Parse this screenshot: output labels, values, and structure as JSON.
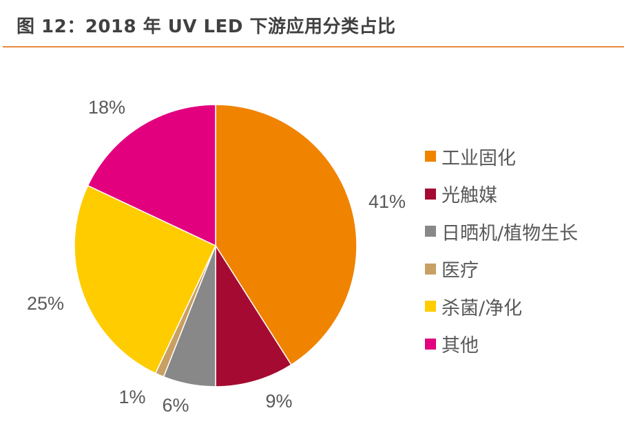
{
  "title": "图 12：2018 年 UV LED 下游应用分类占比",
  "chart_data": {
    "type": "pie",
    "title": "图 12：2018 年 UV LED 下游应用分类占比",
    "categories": [
      "工业固化",
      "光触媒",
      "日晒机/植物生长",
      "医疗",
      "杀菌/净化",
      "其他"
    ],
    "values": [
      41,
      9,
      6,
      1,
      25,
      18
    ],
    "data_labels": [
      "41%",
      "9%",
      "6%",
      "1%",
      "25%",
      "18%"
    ],
    "colors": [
      "#F08300",
      "#A50B32",
      "#888888",
      "#C8A063",
      "#FFCC00",
      "#E2007E"
    ],
    "start_angle": "12 o'clock",
    "direction": "clockwise",
    "legend": "right"
  }
}
